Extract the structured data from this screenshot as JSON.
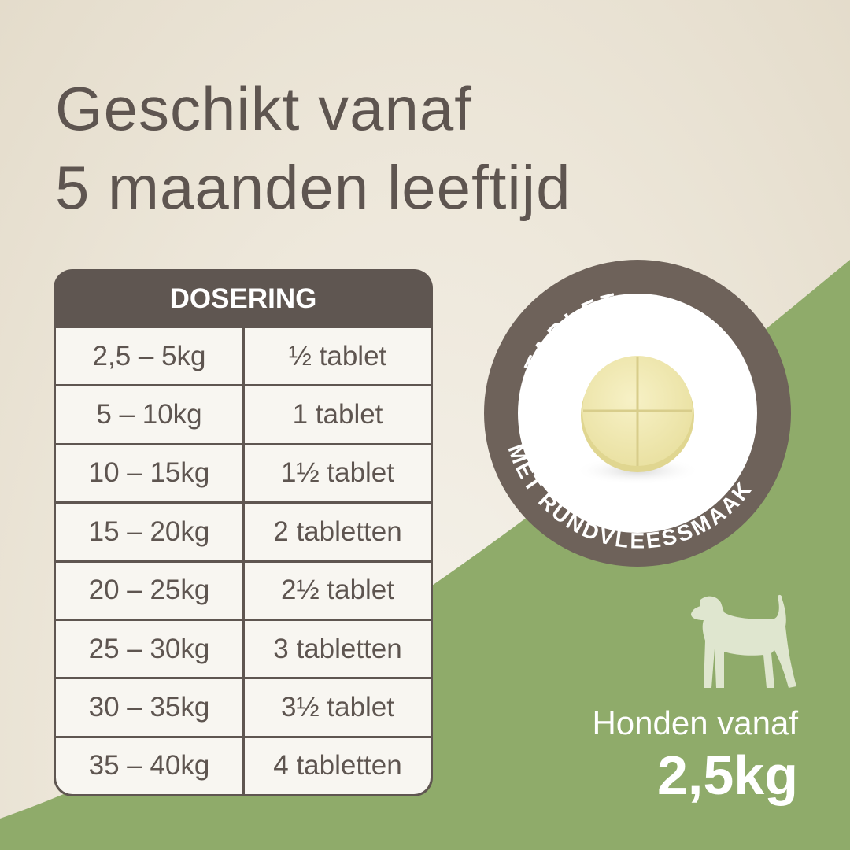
{
  "headline": [
    "Geschikt vanaf",
    "5 maanden leeftijd"
  ],
  "table": {
    "header": "DOSERING",
    "rows": [
      {
        "weight": "2,5 – 5kg",
        "dose": "½ tablet"
      },
      {
        "weight": "5 – 10kg",
        "dose": "1 tablet"
      },
      {
        "weight": "10 – 15kg",
        "dose": "1½ tablet"
      },
      {
        "weight": "15 – 20kg",
        "dose": "2 tabletten"
      },
      {
        "weight": "20 – 25kg",
        "dose": "2½ tablet"
      },
      {
        "weight": "25 – 30kg",
        "dose": "3 tabletten"
      },
      {
        "weight": "30 – 35kg",
        "dose": "3½ tablet"
      },
      {
        "weight": "35 – 40kg",
        "dose": "4 tabletten"
      }
    ]
  },
  "badge": {
    "top_text": "TABLET",
    "bottom_text": "MET RUNDVLEESSMAAK",
    "image": "tablet-photo"
  },
  "dog": {
    "icon": "dog-silhouette-icon",
    "label": "Honden vanaf",
    "weight": "2,5kg"
  },
  "colors": {
    "brown": "#5f5651",
    "green": "#8fab6a",
    "beige": "#ede7da",
    "tablet": "#f1ebb4"
  }
}
